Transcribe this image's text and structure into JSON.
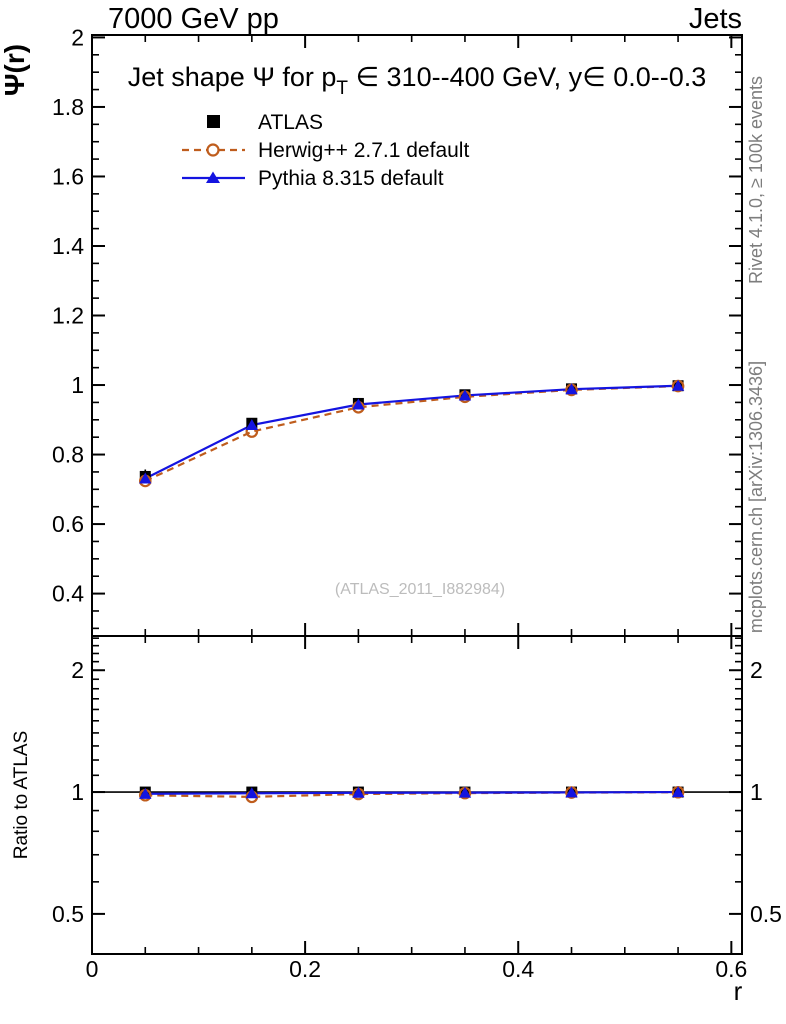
{
  "header": {
    "left": "7000 GeV pp",
    "right": "Jets"
  },
  "titles": {
    "main_pre": "Jet shape Ψ for p",
    "main_sub": "T",
    "main_post": " ∈ 310--400 GeV, y∈ 0.0--0.3",
    "y_axis": "Ψ(r)",
    "ratio_y_axis": "Ratio to ATLAS",
    "x_axis": "r",
    "watermark": "(ATLAS_2011_I882984)"
  },
  "side_notes": {
    "right_top": "Rivet 4.1.0, ≥ 100k events",
    "right_bottom": "mcplots.cern.ch [arXiv:1306.3436]"
  },
  "colors": {
    "atlas": "#000000",
    "herwig": "#bf5d1d",
    "pythia": "#1414e0",
    "frame": "#000000"
  },
  "legend": {
    "items": [
      {
        "label": "ATLAS",
        "marker": "filled-square",
        "line": "none"
      },
      {
        "label": "Herwig++ 2.7.1 default",
        "marker": "open-circle",
        "line": "dashed"
      },
      {
        "label": "Pythia 8.315 default",
        "marker": "filled-triangle",
        "line": "solid"
      }
    ]
  },
  "chart_data": [
    {
      "type": "line",
      "panel": "main",
      "title": "Jet shape Ψ for pT ∈ 310--400 GeV, y∈ 0.0--0.3",
      "xlabel": "r",
      "ylabel": "Ψ(r)",
      "xscale": "linear",
      "yscale": "linear",
      "xlim": [
        0,
        0.61
      ],
      "ylim": [
        0.278,
        2.007
      ],
      "grid": false,
      "legend_position": "top-left",
      "x_ticks": {
        "values": [
          0,
          0.2,
          0.4,
          0.6
        ],
        "labels": [
          "0",
          "0.2",
          "0.4",
          "0.6"
        ],
        "minor_step": 0.05
      },
      "y_ticks": {
        "values": [
          0.4,
          0.6,
          0.8,
          1.0,
          1.2,
          1.4,
          1.6,
          1.8,
          2.0
        ],
        "labels": [
          "0.4",
          "0.6",
          "0.8",
          "1",
          "1.2",
          "1.4",
          "1.6",
          "1.8",
          "2"
        ],
        "minor_step": 0.05
      },
      "x": [
        0.05,
        0.15,
        0.25,
        0.35,
        0.45,
        0.55
      ],
      "series": [
        {
          "name": "ATLAS",
          "marker": "square",
          "color": "atlas",
          "line": "none",
          "values": [
            0.737,
            0.89,
            0.947,
            0.972,
            0.989,
            0.998
          ],
          "errors": [
            0.02,
            0.01,
            0.006,
            0.004,
            0.003,
            0.002
          ]
        },
        {
          "name": "Herwig++ 2.7.1 default",
          "marker": "open-circle",
          "color": "herwig",
          "line": "dashed",
          "values": [
            0.724,
            0.866,
            0.936,
            0.966,
            0.986,
            0.997
          ]
        },
        {
          "name": "Pythia 8.315 default",
          "marker": "triangle",
          "color": "pythia",
          "line": "solid",
          "values": [
            0.731,
            0.885,
            0.944,
            0.97,
            0.988,
            0.998
          ]
        }
      ]
    },
    {
      "type": "line",
      "panel": "ratio",
      "title": "Ratio to ATLAS",
      "xlabel": "r",
      "ylabel": "Ratio to ATLAS",
      "xscale": "linear",
      "yscale": "log",
      "xlim": [
        0,
        0.61
      ],
      "ylim": [
        0.398,
        2.43
      ],
      "grid": false,
      "reference_line": 1.0,
      "x_ticks": {
        "values": [
          0,
          0.2,
          0.4,
          0.6
        ],
        "labels": [
          "0",
          "0.2",
          "0.4",
          "0.6"
        ],
        "minor_step": 0.05
      },
      "y_ticks": {
        "values": [
          0.5,
          1,
          2
        ],
        "labels": [
          "0.5",
          "1",
          "2"
        ],
        "minor_values": [
          0.4,
          0.6,
          0.7,
          0.8,
          0.9,
          1.1,
          1.2,
          1.3,
          1.4,
          1.5,
          1.6,
          1.7,
          1.8,
          1.9,
          2.1,
          2.2,
          2.3,
          2.4
        ]
      },
      "x": [
        0.05,
        0.15,
        0.25,
        0.35,
        0.45,
        0.55
      ],
      "series": [
        {
          "name": "ATLAS",
          "marker": "square",
          "color": "atlas",
          "line": "none",
          "values": [
            1.0,
            1.0,
            1.0,
            1.0,
            1.0,
            1.0
          ]
        },
        {
          "name": "Herwig++ 2.7.1 default",
          "marker": "open-circle",
          "color": "herwig",
          "line": "dashed",
          "values": [
            0.982,
            0.973,
            0.989,
            0.994,
            0.997,
            0.999
          ]
        },
        {
          "name": "Pythia 8.315 default",
          "marker": "triangle",
          "color": "pythia",
          "line": "solid",
          "values": [
            0.99,
            0.993,
            0.996,
            0.997,
            0.998,
            1.0
          ]
        }
      ]
    }
  ]
}
